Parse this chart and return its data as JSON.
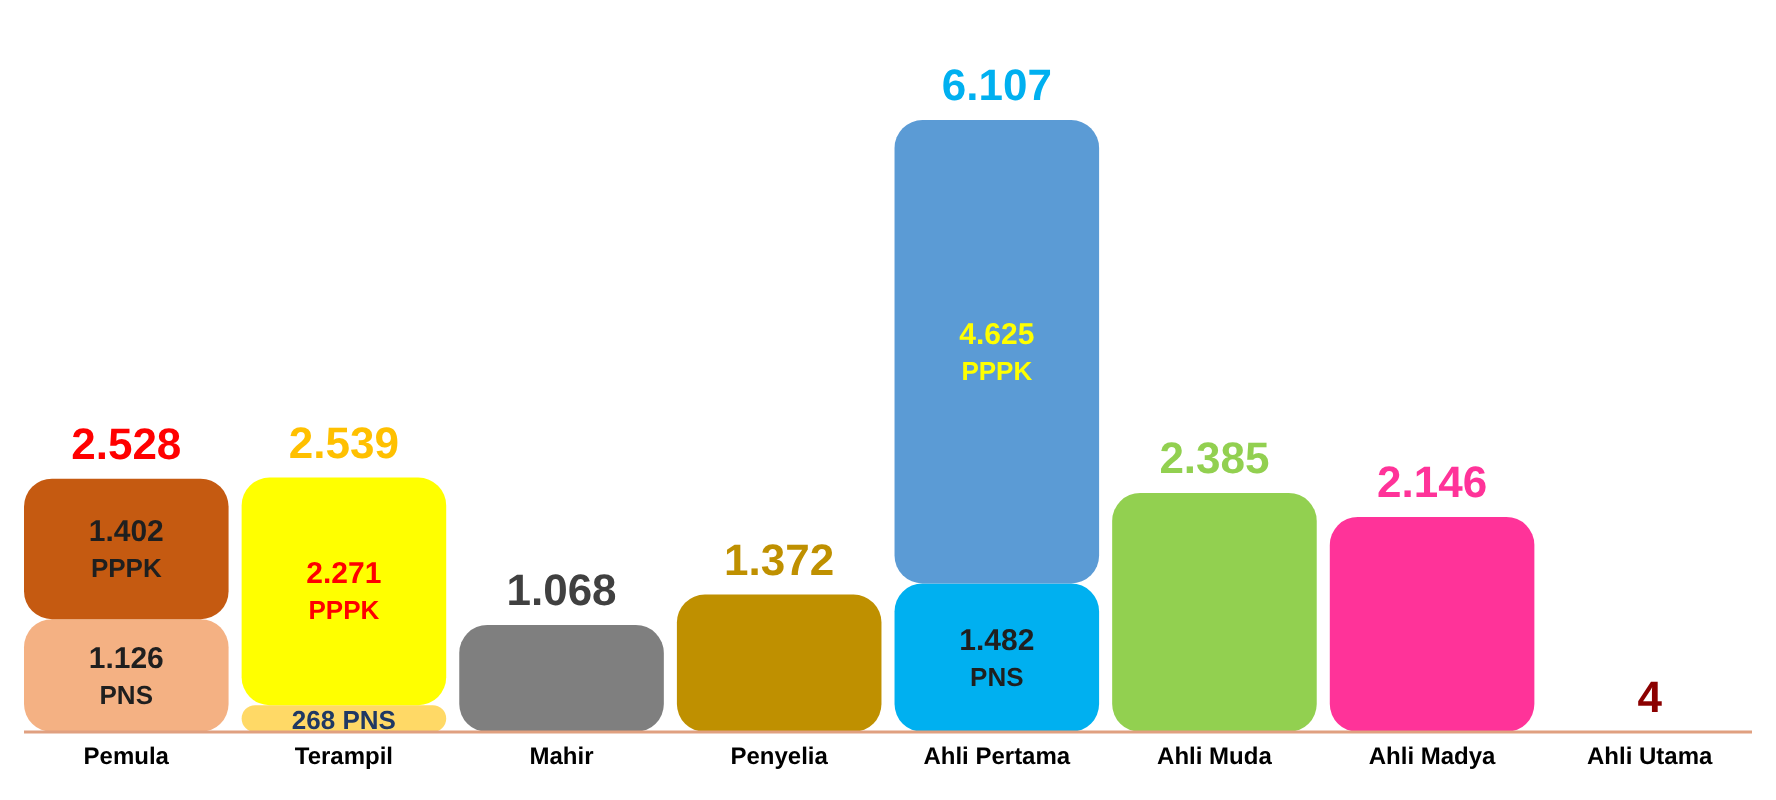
{
  "chart_data": {
    "type": "bar",
    "stacked": true,
    "data_labels": true,
    "categories": [
      "Pemula",
      "Terampil",
      "Mahir",
      "Penyelia",
      "Ahli Pertama",
      "Ahli Muda",
      "Ahli Madya",
      "Ahli Utama"
    ],
    "series": [
      {
        "name": "PNS",
        "colors": [
          "#f4b183",
          "#ffd966",
          null,
          null,
          "#00b0f0",
          null,
          null,
          null
        ],
        "values": [
          1126,
          268,
          null,
          null,
          1482,
          null,
          null,
          null
        ],
        "value_labels": [
          "1.126",
          "268",
          null,
          null,
          "1.482",
          null,
          null,
          null
        ]
      },
      {
        "name": "PPPK",
        "colors": [
          "#c55a11",
          "#ffff00",
          null,
          null,
          "#5b9bd5",
          null,
          null,
          null
        ],
        "values": [
          1402,
          2271,
          null,
          null,
          4625,
          null,
          null,
          null
        ],
        "value_labels": [
          "1.402",
          "2.271",
          null,
          null,
          "4.625",
          null,
          null,
          null
        ]
      },
      {
        "colors": [
          null,
          null,
          "#7f7f7f",
          "#bf9000",
          null,
          "#92d050",
          "#ff3399",
          "#8b0000"
        ],
        "values": [
          null,
          null,
          1068,
          1372,
          null,
          2385,
          2146,
          4
        ],
        "value_labels": [
          null,
          null,
          null,
          null,
          null,
          null,
          null,
          null
        ]
      }
    ],
    "totals": [
      "2.528",
      "2.539",
      "1.068",
      "1.372",
      "6.107",
      "2.385",
      "2.146",
      "4"
    ]
  }
}
